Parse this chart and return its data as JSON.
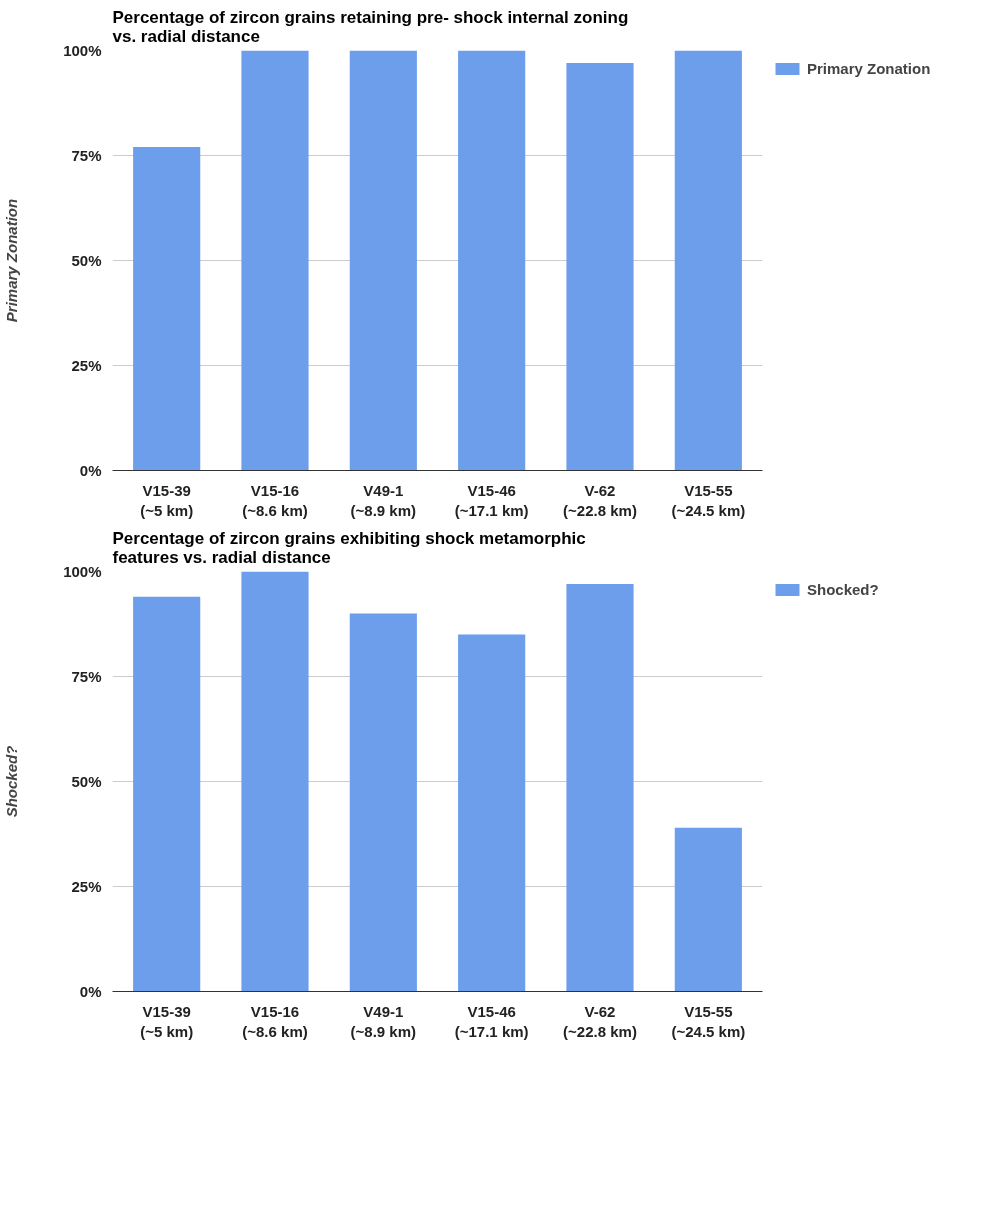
{
  "chart_data": [
    {
      "type": "bar",
      "title": "Percentage of zircon grains retaining pre- shock internal zoning\nvs. radial distance",
      "ylabel": "Primary Zonation",
      "categories": [
        "V15-39\n(~5 km)",
        "V15-16\n(~8.6 km)",
        "V49-1\n(~8.9 km)",
        "V15-46\n(~17.1 km)",
        "V-62\n(~22.8 km)",
        "V15-55\n(~24.5 km)"
      ],
      "series": [
        {
          "name": "Primary Zonation",
          "color": "#6d9eeb",
          "values": [
            77,
            100,
            100,
            100,
            97,
            100
          ]
        }
      ],
      "ylim": [
        0,
        100
      ],
      "yticks": [
        {
          "value": 0,
          "label": "0%"
        },
        {
          "value": 25,
          "label": "25%"
        },
        {
          "value": 50,
          "label": "50%"
        },
        {
          "value": 75,
          "label": "75%"
        },
        {
          "value": 100,
          "label": "100%"
        }
      ],
      "grid": "y",
      "legend": "right"
    },
    {
      "type": "bar",
      "title": "Percentage of zircon grains exhibiting shock metamorphic\nfeatures vs. radial distance",
      "ylabel": "Shocked?",
      "categories": [
        "V15-39\n(~5 km)",
        "V15-16\n(~8.6 km)",
        "V49-1\n(~8.9 km)",
        "V15-46\n(~17.1 km)",
        "V-62\n(~22.8 km)",
        "V15-55\n(~24.5 km)"
      ],
      "series": [
        {
          "name": "Shocked?",
          "color": "#6d9eeb",
          "values": [
            94,
            100,
            90,
            85,
            97,
            39
          ]
        }
      ],
      "ylim": [
        0,
        100
      ],
      "yticks": [
        {
          "value": 0,
          "label": "0%"
        },
        {
          "value": 25,
          "label": "25%"
        },
        {
          "value": 50,
          "label": "50%"
        },
        {
          "value": 75,
          "label": "75%"
        },
        {
          "value": 100,
          "label": "100%"
        }
      ],
      "grid": "y",
      "legend": "right"
    }
  ]
}
